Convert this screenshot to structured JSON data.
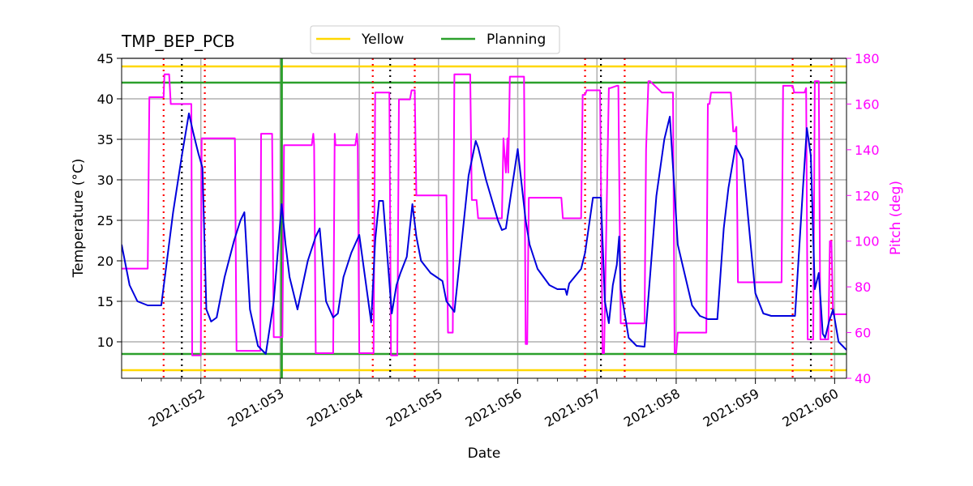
{
  "chart_data": {
    "type": "line",
    "title": "TMP_BEP_PCB",
    "xlabel": "Date",
    "ylabel": "Temperature ($^\\circ$C)",
    "ylabel_display": "Temperature (°C)",
    "y2label": "Pitch (deg)",
    "xlim": [
      51.0,
      60.15
    ],
    "ylim": [
      5.5,
      45
    ],
    "y2lim": [
      40,
      180
    ],
    "grid": true,
    "x_ticks": [
      {
        "value": 52,
        "label": "2021:052"
      },
      {
        "value": 53,
        "label": "2021:053"
      },
      {
        "value": 54,
        "label": "2021:054"
      },
      {
        "value": 55,
        "label": "2021:055"
      },
      {
        "value": 56,
        "label": "2021:056"
      },
      {
        "value": 57,
        "label": "2021:057"
      },
      {
        "value": 58,
        "label": "2021:058"
      },
      {
        "value": 59,
        "label": "2021:059"
      },
      {
        "value": 60,
        "label": "2021:060"
      }
    ],
    "y_ticks": [
      10,
      15,
      20,
      25,
      30,
      35,
      40,
      45
    ],
    "y2_ticks": [
      40,
      60,
      80,
      100,
      120,
      140,
      160,
      180
    ],
    "legend": {
      "placement": "top-center",
      "entries": [
        {
          "label": "Yellow",
          "color": "#ffd700"
        },
        {
          "label": "Planning",
          "color": "#2ca02c"
        }
      ]
    },
    "limits": {
      "yellow": [
        6.5,
        44
      ],
      "planning": [
        8.5,
        42
      ]
    },
    "planning_vline": 53.02,
    "red_dotted_vlines": [
      51.53,
      52.05,
      54.17,
      54.7,
      56.85,
      57.35,
      59.47,
      59.96
    ],
    "black_dotted_vlines": [
      51.76,
      54.39,
      57.05,
      59.7
    ],
    "series": [
      {
        "name": "TMP_BEP_PCB",
        "axis": "left",
        "color": "#0000dd",
        "x": [
          51.0,
          51.1,
          51.2,
          51.33,
          51.5,
          51.65,
          51.76,
          51.85,
          51.9,
          51.95,
          51.97,
          52.02,
          52.07,
          52.13,
          52.2,
          52.3,
          52.42,
          52.5,
          52.55,
          52.62,
          52.72,
          52.82,
          52.92,
          53.02,
          53.07,
          53.12,
          53.22,
          53.35,
          53.45,
          53.5,
          53.58,
          53.67,
          53.73,
          53.8,
          53.9,
          54.0,
          54.15,
          54.2,
          54.25,
          54.3,
          54.41,
          54.47,
          54.52,
          54.6,
          54.67,
          54.72,
          54.78,
          54.9,
          55.05,
          55.1,
          55.2,
          55.3,
          55.38,
          55.47,
          55.5,
          55.6,
          55.75,
          55.8,
          55.85,
          56.0,
          56.1,
          56.15,
          56.25,
          56.4,
          56.5,
          56.6,
          56.62,
          56.65,
          56.8,
          56.85,
          56.95,
          57.02,
          57.05,
          57.1,
          57.15,
          57.2,
          57.25,
          57.28,
          57.3,
          57.4,
          57.5,
          57.6,
          57.75,
          57.85,
          57.92,
          57.97,
          58.02,
          58.2,
          58.3,
          58.4,
          58.52,
          58.6,
          58.66,
          58.75,
          58.84,
          58.94,
          59.0,
          59.1,
          59.2,
          59.3,
          59.5,
          59.6,
          59.65,
          59.7,
          59.75,
          59.8,
          59.85,
          59.88,
          59.93,
          59.98,
          60.05,
          60.15
        ],
        "values": [
          22,
          17,
          15,
          14.5,
          14.5,
          26,
          33,
          38.2,
          36,
          34,
          33.2,
          31.5,
          14,
          12.5,
          13,
          18,
          22.5,
          25,
          26,
          14,
          9.5,
          8.5,
          15,
          27,
          22,
          18,
          14,
          20,
          23,
          24,
          15,
          13,
          13.5,
          18,
          21,
          23.2,
          12.4,
          22.5,
          27.4,
          27.4,
          13.5,
          17,
          18.5,
          20.5,
          27,
          23,
          20,
          18.5,
          17.5,
          15,
          13.7,
          23,
          30.5,
          34.8,
          34,
          30,
          25,
          23.8,
          24,
          33.8,
          25,
          22,
          19,
          17,
          16.5,
          16.5,
          15.8,
          17.2,
          19,
          21,
          27.8,
          27.8,
          27.8,
          15,
          12.3,
          17,
          19.5,
          23,
          16.5,
          10.5,
          9.5,
          9.4,
          28,
          35,
          37.8,
          30,
          22,
          14.5,
          13.2,
          12.8,
          12.8,
          24,
          29,
          34.2,
          32.5,
          22,
          16,
          13.5,
          13.2,
          13.2,
          13.2,
          29,
          36.4,
          33,
          16.5,
          18.5,
          11,
          10.5,
          12.5,
          14,
          10,
          9
        ]
      },
      {
        "name": "Pitch",
        "axis": "right",
        "color": "#ff00ff",
        "x": [
          51.0,
          51.33,
          51.35,
          51.53,
          51.54,
          51.6,
          51.62,
          51.64,
          51.88,
          51.89,
          52.0,
          52.01,
          52.05,
          52.06,
          52.43,
          52.45,
          52.75,
          52.76,
          52.9,
          52.92,
          53.03,
          53.05,
          53.4,
          53.42,
          53.43,
          53.45,
          53.67,
          53.69,
          53.7,
          53.72,
          53.95,
          53.97,
          53.98,
          54.0,
          54.18,
          54.2,
          54.38,
          54.4,
          54.48,
          54.5,
          54.64,
          54.66,
          54.7,
          54.72,
          55.1,
          55.12,
          55.18,
          55.2,
          55.4,
          55.42,
          55.48,
          55.5,
          55.8,
          55.82,
          55.85,
          55.87,
          55.88,
          55.9,
          56.08,
          56.1,
          56.12,
          56.14,
          56.16,
          56.55,
          56.57,
          56.8,
          56.82,
          56.85,
          56.87,
          57.02,
          57.04,
          57.07,
          57.09,
          57.15,
          57.17,
          57.25,
          57.27,
          57.3,
          57.32,
          57.6,
          57.62,
          57.65,
          57.67,
          57.82,
          57.84,
          57.96,
          57.98,
          58.0,
          58.02,
          58.38,
          58.4,
          58.42,
          58.44,
          58.67,
          58.69,
          58.72,
          58.74,
          58.76,
          58.78,
          59.33,
          59.35,
          59.47,
          59.49,
          59.6,
          59.62,
          59.64,
          59.66,
          59.73,
          59.75,
          59.8,
          59.82,
          59.92,
          59.94,
          59.96,
          59.98,
          60.15
        ],
        "values": [
          88,
          88,
          163,
          163,
          173,
          173,
          160,
          160,
          160,
          50,
          50,
          145,
          145,
          145,
          145,
          52,
          52,
          147,
          147,
          58,
          58,
          142,
          142,
          147,
          142,
          51,
          51,
          147,
          142,
          142,
          142,
          147,
          142,
          51,
          51,
          165,
          165,
          50,
          50,
          162,
          162,
          166,
          166,
          120,
          120,
          60,
          60,
          173,
          173,
          118,
          118,
          110,
          110,
          145,
          130,
          145,
          130,
          172,
          172,
          55,
          55,
          119,
          119,
          119,
          110,
          110,
          164,
          164,
          166,
          166,
          166,
          51,
          51,
          167,
          167,
          168,
          168,
          64,
          64,
          64,
          140,
          170,
          170,
          165,
          165,
          165,
          51,
          51,
          60,
          60,
          160,
          160,
          165,
          165,
          165,
          148,
          148,
          150,
          82,
          82,
          168,
          168,
          165,
          165,
          165,
          167,
          57,
          57,
          170,
          170,
          57,
          57,
          100,
          100,
          68,
          68
        ]
      }
    ]
  }
}
